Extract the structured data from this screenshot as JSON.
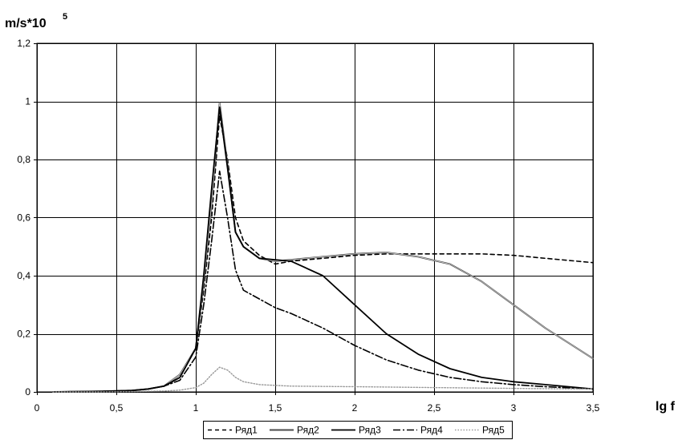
{
  "chart_data": {
    "type": "line",
    "ylabel": "m/s*10",
    "ylabel_superscript": "5",
    "xlabel": "lg f",
    "xlim": [
      0,
      3.5
    ],
    "ylim": [
      0,
      1.2
    ],
    "grid": true,
    "legend_placement": "bottom-center",
    "x_ticks": [
      "0",
      "0,5",
      "1",
      "1,5",
      "2",
      "2,5",
      "3",
      "3,5"
    ],
    "y_ticks": [
      "0",
      "0,2",
      "0,4",
      "0,6",
      "0,8",
      "1",
      "1,2"
    ],
    "series": [
      {
        "name": "Ряд1",
        "style": "dashed",
        "points": [
          [
            0.1,
            0
          ],
          [
            0.4,
            0.002
          ],
          [
            0.6,
            0.005
          ],
          [
            0.7,
            0.01
          ],
          [
            0.8,
            0.02
          ],
          [
            0.9,
            0.05
          ],
          [
            1.0,
            0.15
          ],
          [
            1.05,
            0.35
          ],
          [
            1.1,
            0.6
          ],
          [
            1.15,
            0.95
          ],
          [
            1.2,
            0.8
          ],
          [
            1.25,
            0.6
          ],
          [
            1.3,
            0.52
          ],
          [
            1.4,
            0.47
          ],
          [
            1.5,
            0.44
          ],
          [
            1.6,
            0.45
          ],
          [
            1.8,
            0.46
          ],
          [
            2.0,
            0.47
          ],
          [
            2.2,
            0.475
          ],
          [
            2.5,
            0.475
          ],
          [
            2.8,
            0.475
          ],
          [
            3.0,
            0.47
          ],
          [
            3.2,
            0.46
          ],
          [
            3.5,
            0.445
          ]
        ]
      },
      {
        "name": "Ряд2",
        "style": "double",
        "points": [
          [
            0.1,
            0
          ],
          [
            0.4,
            0.002
          ],
          [
            0.6,
            0.005
          ],
          [
            0.7,
            0.01
          ],
          [
            0.8,
            0.02
          ],
          [
            0.9,
            0.06
          ],
          [
            1.0,
            0.15
          ],
          [
            1.05,
            0.38
          ],
          [
            1.1,
            0.65
          ],
          [
            1.15,
            0.995
          ],
          [
            1.2,
            0.78
          ],
          [
            1.25,
            0.55
          ],
          [
            1.3,
            0.5
          ],
          [
            1.4,
            0.46
          ],
          [
            1.5,
            0.45
          ],
          [
            1.6,
            0.455
          ],
          [
            1.8,
            0.465
          ],
          [
            2.0,
            0.475
          ],
          [
            2.2,
            0.48
          ],
          [
            2.4,
            0.465
          ],
          [
            2.6,
            0.44
          ],
          [
            2.8,
            0.38
          ],
          [
            3.0,
            0.3
          ],
          [
            3.2,
            0.22
          ],
          [
            3.5,
            0.115
          ]
        ]
      },
      {
        "name": "Ряд3",
        "style": "solid",
        "points": [
          [
            0.1,
            0
          ],
          [
            0.4,
            0.002
          ],
          [
            0.6,
            0.005
          ],
          [
            0.7,
            0.01
          ],
          [
            0.8,
            0.02
          ],
          [
            0.9,
            0.05
          ],
          [
            1.0,
            0.15
          ],
          [
            1.05,
            0.4
          ],
          [
            1.1,
            0.7
          ],
          [
            1.15,
            0.98
          ],
          [
            1.2,
            0.77
          ],
          [
            1.25,
            0.55
          ],
          [
            1.3,
            0.5
          ],
          [
            1.4,
            0.46
          ],
          [
            1.5,
            0.455
          ],
          [
            1.6,
            0.45
          ],
          [
            1.8,
            0.4
          ],
          [
            2.0,
            0.3
          ],
          [
            2.2,
            0.2
          ],
          [
            2.4,
            0.13
          ],
          [
            2.6,
            0.08
          ],
          [
            2.8,
            0.05
          ],
          [
            3.0,
            0.035
          ],
          [
            3.2,
            0.025
          ],
          [
            3.5,
            0.01
          ]
        ]
      },
      {
        "name": "Ряд4",
        "style": "dashdot",
        "points": [
          [
            0.1,
            0
          ],
          [
            0.4,
            0.002
          ],
          [
            0.6,
            0.005
          ],
          [
            0.7,
            0.01
          ],
          [
            0.8,
            0.02
          ],
          [
            0.9,
            0.04
          ],
          [
            1.0,
            0.12
          ],
          [
            1.05,
            0.3
          ],
          [
            1.1,
            0.52
          ],
          [
            1.15,
            0.76
          ],
          [
            1.2,
            0.6
          ],
          [
            1.25,
            0.42
          ],
          [
            1.3,
            0.35
          ],
          [
            1.4,
            0.32
          ],
          [
            1.5,
            0.29
          ],
          [
            1.6,
            0.27
          ],
          [
            1.8,
            0.22
          ],
          [
            2.0,
            0.16
          ],
          [
            2.2,
            0.11
          ],
          [
            2.4,
            0.075
          ],
          [
            2.6,
            0.05
          ],
          [
            2.8,
            0.035
          ],
          [
            3.0,
            0.025
          ],
          [
            3.2,
            0.018
          ],
          [
            3.5,
            0.01
          ]
        ]
      },
      {
        "name": "Ряд5",
        "style": "dotted",
        "points": [
          [
            0.1,
            0
          ],
          [
            0.4,
            0
          ],
          [
            0.6,
            0.001
          ],
          [
            0.8,
            0.003
          ],
          [
            0.9,
            0.006
          ],
          [
            1.0,
            0.015
          ],
          [
            1.05,
            0.03
          ],
          [
            1.1,
            0.06
          ],
          [
            1.15,
            0.085
          ],
          [
            1.2,
            0.075
          ],
          [
            1.25,
            0.05
          ],
          [
            1.3,
            0.035
          ],
          [
            1.4,
            0.025
          ],
          [
            1.6,
            0.02
          ],
          [
            2.0,
            0.018
          ],
          [
            2.5,
            0.015
          ],
          [
            3.0,
            0.012
          ],
          [
            3.5,
            0.01
          ]
        ]
      }
    ]
  }
}
